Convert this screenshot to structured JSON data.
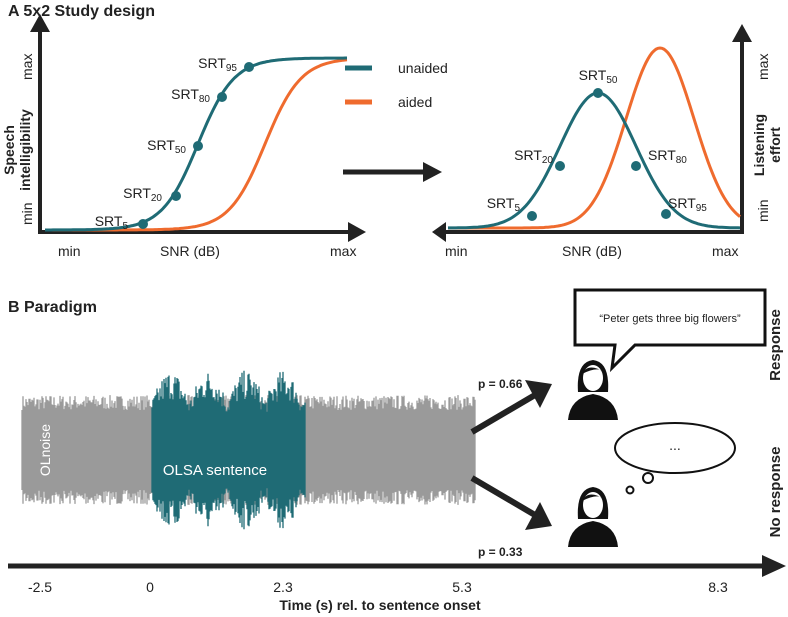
{
  "panel_a": {
    "title": "A 5x2 Study design",
    "left": {
      "y_label": [
        "Speech",
        "intelligibility"
      ],
      "y_max": "max",
      "y_min": "min",
      "x_min": "min",
      "x_label": "SNR (dB)",
      "x_max": "max",
      "points": [
        {
          "base": "SRT",
          "sub": "5"
        },
        {
          "base": "SRT",
          "sub": "20"
        },
        {
          "base": "SRT",
          "sub": "50"
        },
        {
          "base": "SRT",
          "sub": "80"
        },
        {
          "base": "SRT",
          "sub": "95"
        }
      ]
    },
    "legend": [
      "unaided",
      "aided"
    ],
    "right": {
      "y_label": [
        "Listening",
        "effort"
      ],
      "y_max": "max",
      "y_min": "min",
      "x_min": "min",
      "x_label": "SNR (dB)",
      "x_max": "max",
      "points": [
        {
          "base": "SRT",
          "sub": "5"
        },
        {
          "base": "SRT",
          "sub": "20"
        },
        {
          "base": "SRT",
          "sub": "50"
        },
        {
          "base": "SRT",
          "sub": "80"
        },
        {
          "base": "SRT",
          "sub": "95"
        }
      ]
    }
  },
  "panel_b": {
    "title": "B Paradigm",
    "noise_label": "OLnoise",
    "sentence_label": "OLSA sentence",
    "p_response": "p = 0.66",
    "p_no_response": "p = 0.33",
    "speech": "“Peter gets three big flowers”",
    "thought": "...",
    "response": "Response",
    "no_response": "No response",
    "time_ticks": [
      "-2.5",
      "0",
      "2.3",
      "5.3",
      "8.3"
    ],
    "time_label": "Time (s) rel. to sentence onset"
  }
}
